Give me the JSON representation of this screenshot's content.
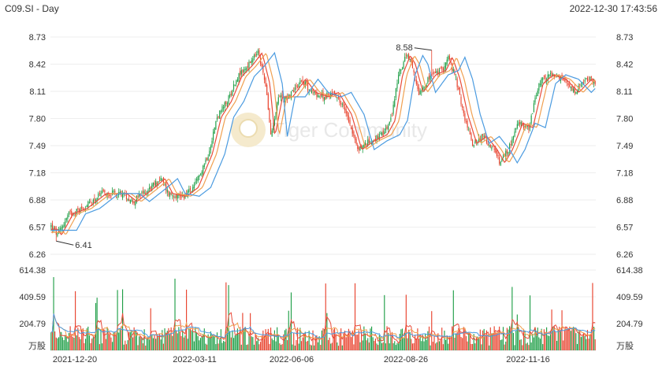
{
  "header": {
    "symbol_period": "C09.SI - Day",
    "timestamp": "2022-12-30 17:43:56"
  },
  "watermark": {
    "text": "Tiger Community"
  },
  "colors": {
    "up": "#1e9e46",
    "down": "#e8412c",
    "ma1": "#e84b3a",
    "ma2": "#f0a050",
    "ma3": "#4b9be0"
  },
  "chart_data": [
    {
      "type": "candlestick",
      "ylim": [
        6.26,
        8.73
      ],
      "price_ticks": [
        "8.73",
        "8.42",
        "8.11",
        "7.80",
        "7.49",
        "7.18",
        "6.88",
        "6.57",
        "6.26"
      ],
      "x_labels": [
        "2021-12-20",
        "2022-03-11",
        "2022-06-06",
        "2022-08-26",
        "2022-11-16"
      ],
      "annotations": {
        "high": "8.58",
        "low": "6.41"
      },
      "close_path": [
        [
          0,
          6.58
        ],
        [
          5,
          6.48
        ],
        [
          14,
          6.72
        ],
        [
          25,
          6.78
        ],
        [
          40,
          6.95
        ],
        [
          56,
          6.95
        ],
        [
          64,
          6.86
        ],
        [
          78,
          7.02
        ],
        [
          86,
          7.12
        ],
        [
          92,
          6.95
        ],
        [
          103,
          6.92
        ],
        [
          112,
          7.02
        ],
        [
          123,
          7.4
        ],
        [
          130,
          7.82
        ],
        [
          138,
          8.0
        ],
        [
          146,
          8.28
        ],
        [
          154,
          8.4
        ],
        [
          162,
          8.55
        ],
        [
          168,
          8.2
        ],
        [
          172,
          7.6
        ],
        [
          178,
          8.05
        ],
        [
          186,
          8.05
        ],
        [
          196,
          8.25
        ],
        [
          204,
          8.1
        ],
        [
          214,
          8.05
        ],
        [
          222,
          8.1
        ],
        [
          232,
          7.85
        ],
        [
          240,
          7.45
        ],
        [
          250,
          7.55
        ],
        [
          260,
          7.62
        ],
        [
          266,
          7.78
        ],
        [
          272,
          8.3
        ],
        [
          278,
          8.52
        ],
        [
          282,
          8.42
        ],
        [
          288,
          8.1
        ],
        [
          298,
          8.3
        ],
        [
          306,
          8.35
        ],
        [
          311,
          8.5
        ],
        [
          317,
          8.25
        ],
        [
          323,
          7.85
        ],
        [
          330,
          7.52
        ],
        [
          338,
          7.6
        ],
        [
          346,
          7.45
        ],
        [
          352,
          7.3
        ],
        [
          358,
          7.45
        ],
        [
          366,
          7.75
        ],
        [
          374,
          7.7
        ],
        [
          382,
          8.2
        ],
        [
          390,
          8.3
        ],
        [
          400,
          8.25
        ],
        [
          410,
          8.1
        ],
        [
          420,
          8.25
        ],
        [
          426,
          8.22
        ]
      ],
      "ma_offsets": [
        0.06,
        0.13,
        0.24
      ],
      "volume": {
        "ticks": [
          "614.38",
          "409.59",
          "204.79"
        ],
        "unit": "万股",
        "max": 614.38
      }
    }
  ]
}
